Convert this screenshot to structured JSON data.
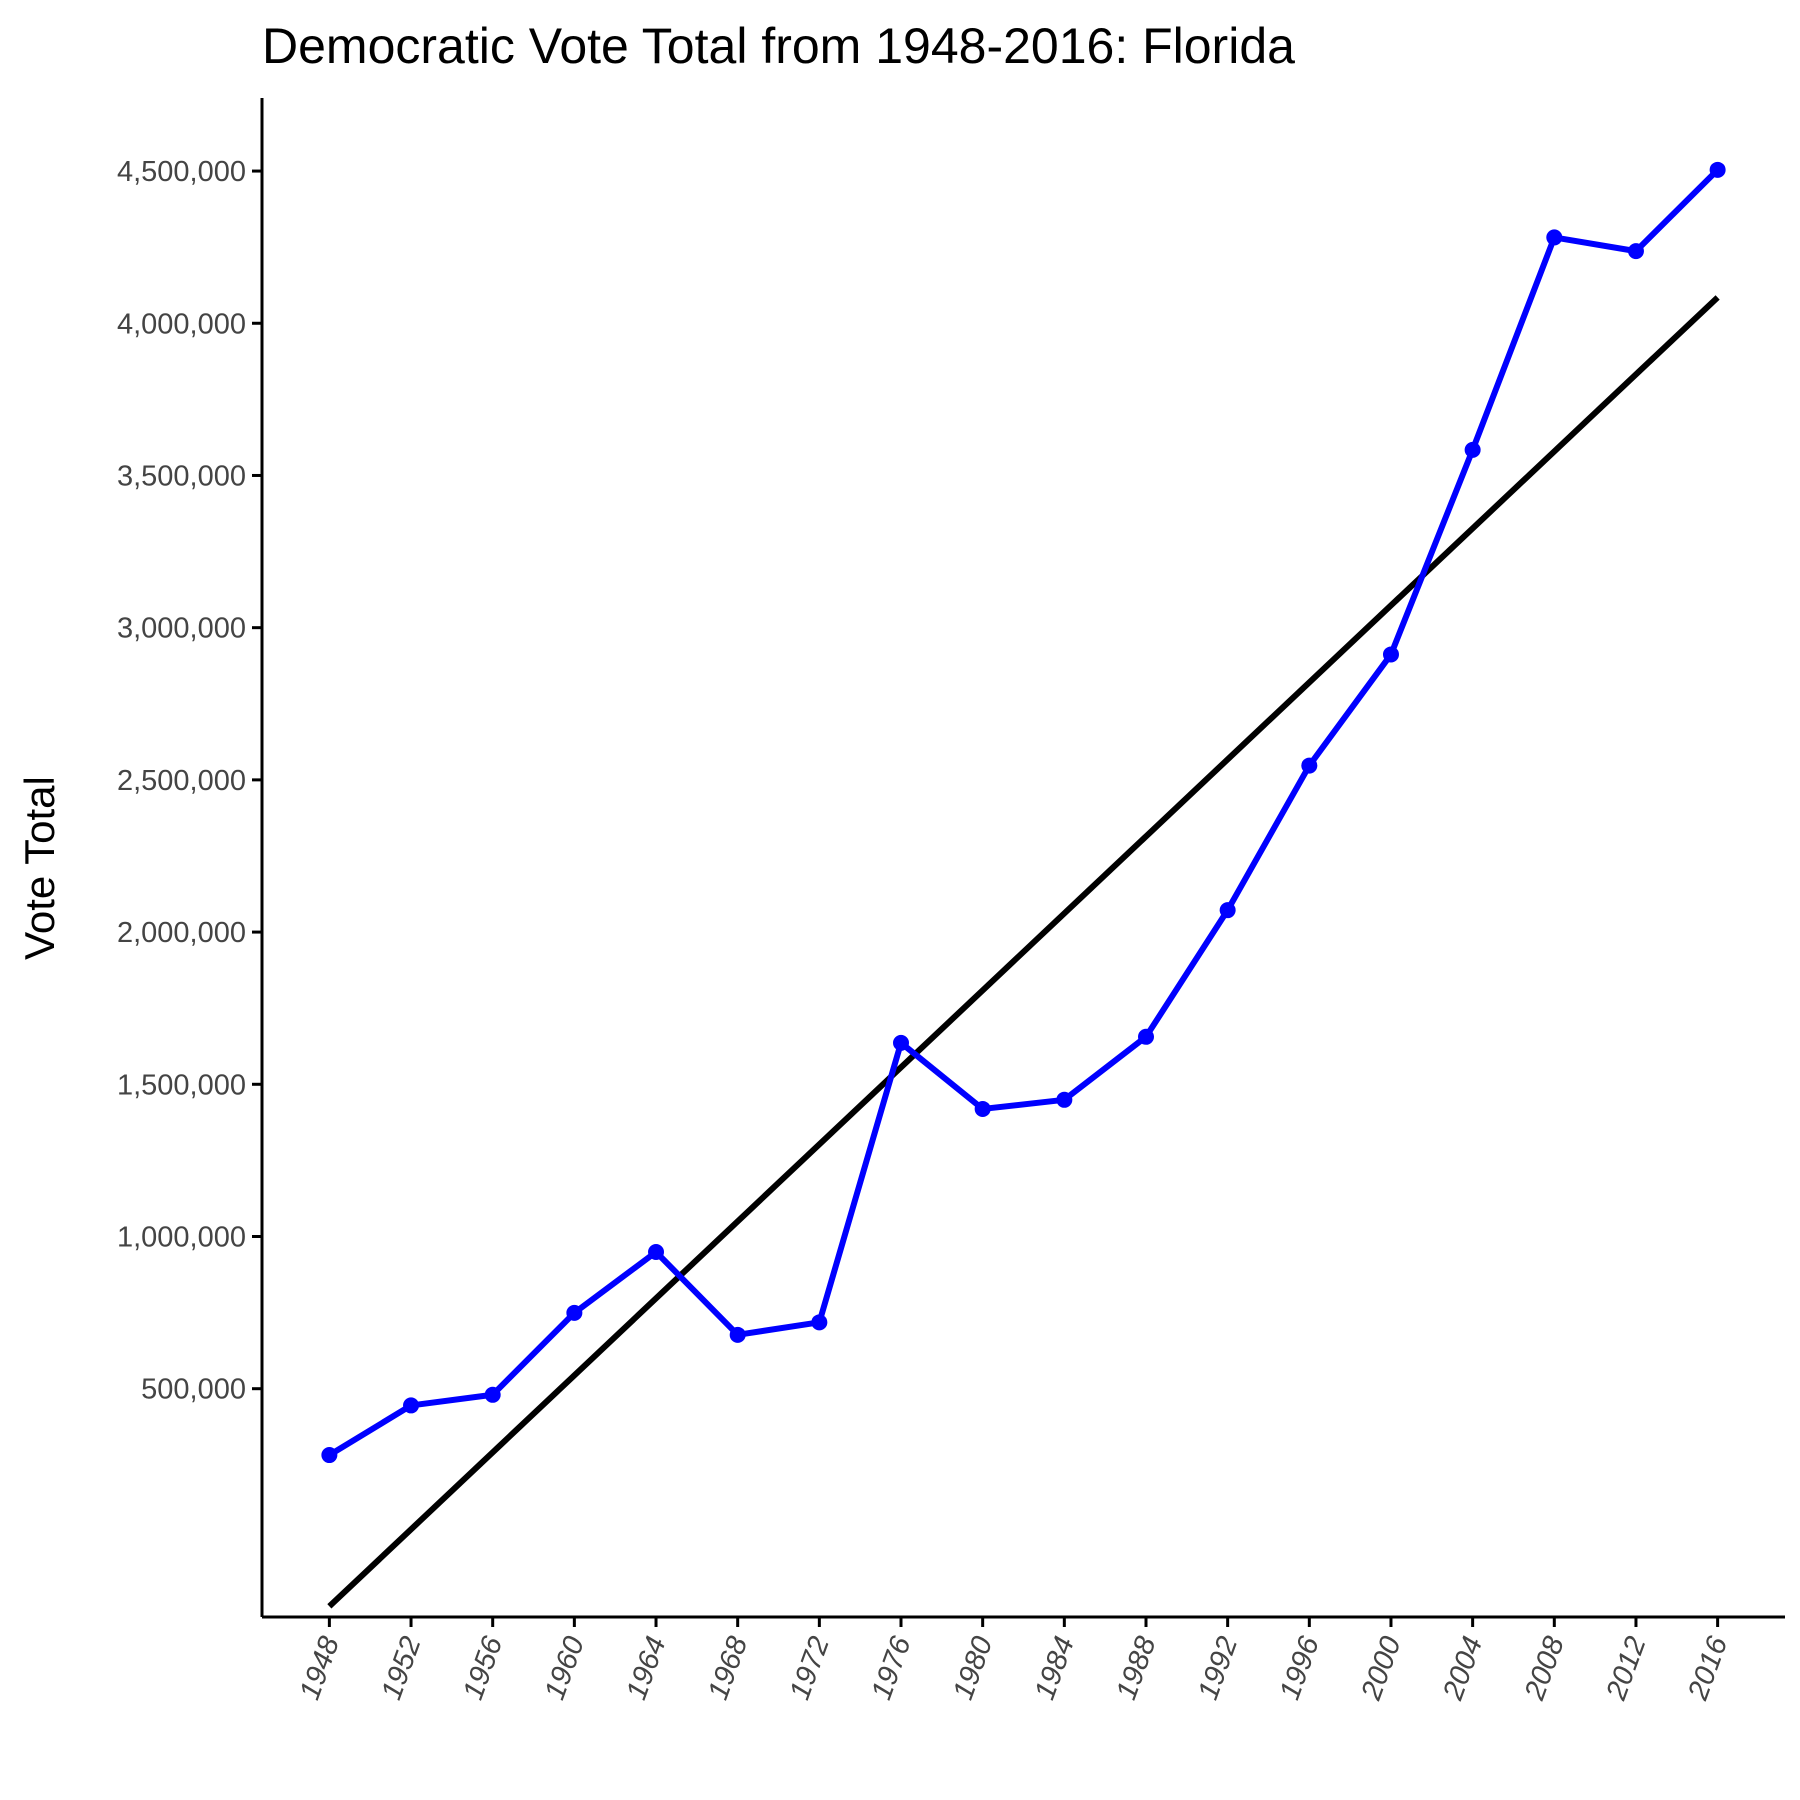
{
  "chart_data": {
    "type": "line",
    "title": "Democratic Vote Total from 1948-2016: Florida",
    "xlabel": "",
    "ylabel": "Vote Total",
    "x": [
      1948,
      1952,
      1956,
      1960,
      1964,
      1968,
      1972,
      1976,
      1980,
      1984,
      1988,
      1992,
      1996,
      2000,
      2004,
      2008,
      2012,
      2016
    ],
    "x_tick_labels": [
      "1948",
      "1952",
      "1956",
      "1960",
      "1964",
      "1968",
      "1972",
      "1976",
      "1980",
      "1984",
      "1988",
      "1992",
      "1996",
      "2000",
      "2004",
      "2008",
      "2012",
      "2016"
    ],
    "y_ticks": [
      500000,
      1000000,
      1500000,
      2000000,
      2500000,
      3000000,
      3500000,
      4000000,
      4500000
    ],
    "y_tick_labels": [
      "500,000",
      "1,000,000",
      "1,500,000",
      "2,000,000",
      "2,500,000",
      "3,000,000",
      "3,500,000",
      "4,000,000",
      "4,500,000"
    ],
    "ylim": [
      -250000,
      4740000
    ],
    "xlim": [
      1944.7,
      2019.3
    ],
    "series": [
      {
        "values": [
          282000,
          445000,
          480000,
          749000,
          949000,
          677000,
          718000,
          1636000,
          1419000,
          1449000,
          1656000,
          2072000,
          2547000,
          2912000,
          3584000,
          4282000,
          4237000,
          4504000
        ],
        "color": "#0000ff",
        "markers": true
      }
    ],
    "trend_line": {
      "kind": "linear fit",
      "x": [
        1948,
        2016
      ],
      "y": [
        -215000,
        4085000
      ],
      "color": "#000000"
    },
    "grid": false,
    "legend": "none"
  }
}
